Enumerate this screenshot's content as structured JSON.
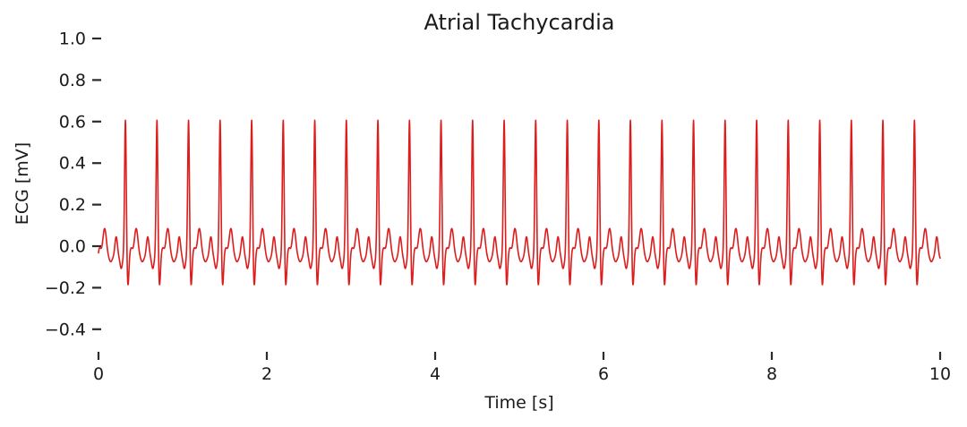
{
  "figure": {
    "background": "#ffffff",
    "text_color": "#1a1a1a",
    "tick_color": "#2b2b2b"
  },
  "chart_data": {
    "type": "line",
    "title": "Atrial Tachycardia",
    "xlabel": "Time [s]",
    "ylabel": "ECG [mV]",
    "xlim": [
      0,
      10
    ],
    "ylim": [
      -0.52,
      1.08
    ],
    "xticks": [
      0,
      2,
      4,
      6,
      8,
      10
    ],
    "xtick_labels": [
      "0",
      "2",
      "4",
      "6",
      "8",
      "10"
    ],
    "yticks": [
      1.0,
      0.8,
      0.6,
      0.4,
      0.2,
      0.0,
      -0.2,
      -0.4
    ],
    "ytick_labels": [
      "1.0",
      "0.8",
      "0.6",
      "0.4",
      "0.2",
      "0.0",
      "−0.2",
      "−0.4"
    ],
    "grid": false,
    "legend": null,
    "spines": false,
    "line_color": "#dd1c1c",
    "line_width": 1.6,
    "signal": {
      "description": "Simulated ECG trace, atrial tachycardia",
      "duration_s": 10,
      "sampling_step_s": 0.0025,
      "heart_rate_bpm": 160,
      "rr_interval_s": 0.375,
      "first_r_peak_s": 0.32,
      "num_beats": 26,
      "baseline_mv": -0.05,
      "r_peak_mv": 0.61,
      "s_trough_mv": -0.19,
      "t_peak_mv": 0.08,
      "p_peak_mv": 0.04,
      "beat_components": [
        {
          "wave": "Q_dip",
          "amp": -0.045,
          "mu": -0.048,
          "sigma": 0.013
        },
        {
          "wave": "R_peak",
          "amp": 0.66,
          "mu": 0.0,
          "sigma": 0.01
        },
        {
          "wave": "S_trough",
          "amp": -0.145,
          "mu": 0.03,
          "sigma": 0.011
        },
        {
          "wave": "post_S_bump",
          "amp": 0.04,
          "mu": 0.068,
          "sigma": 0.016
        },
        {
          "wave": "T_wave",
          "amp": 0.135,
          "mu": 0.128,
          "sigma": 0.021
        },
        {
          "wave": "TP_dip",
          "amp": -0.025,
          "mu": 0.2,
          "sigma": 0.018
        },
        {
          "wave": "P_wave",
          "amp": 0.095,
          "mu": 0.265,
          "sigma": 0.015
        },
        {
          "wave": "PQ_dip",
          "amp": -0.015,
          "mu": 0.317,
          "sigma": 0.014
        }
      ]
    }
  }
}
